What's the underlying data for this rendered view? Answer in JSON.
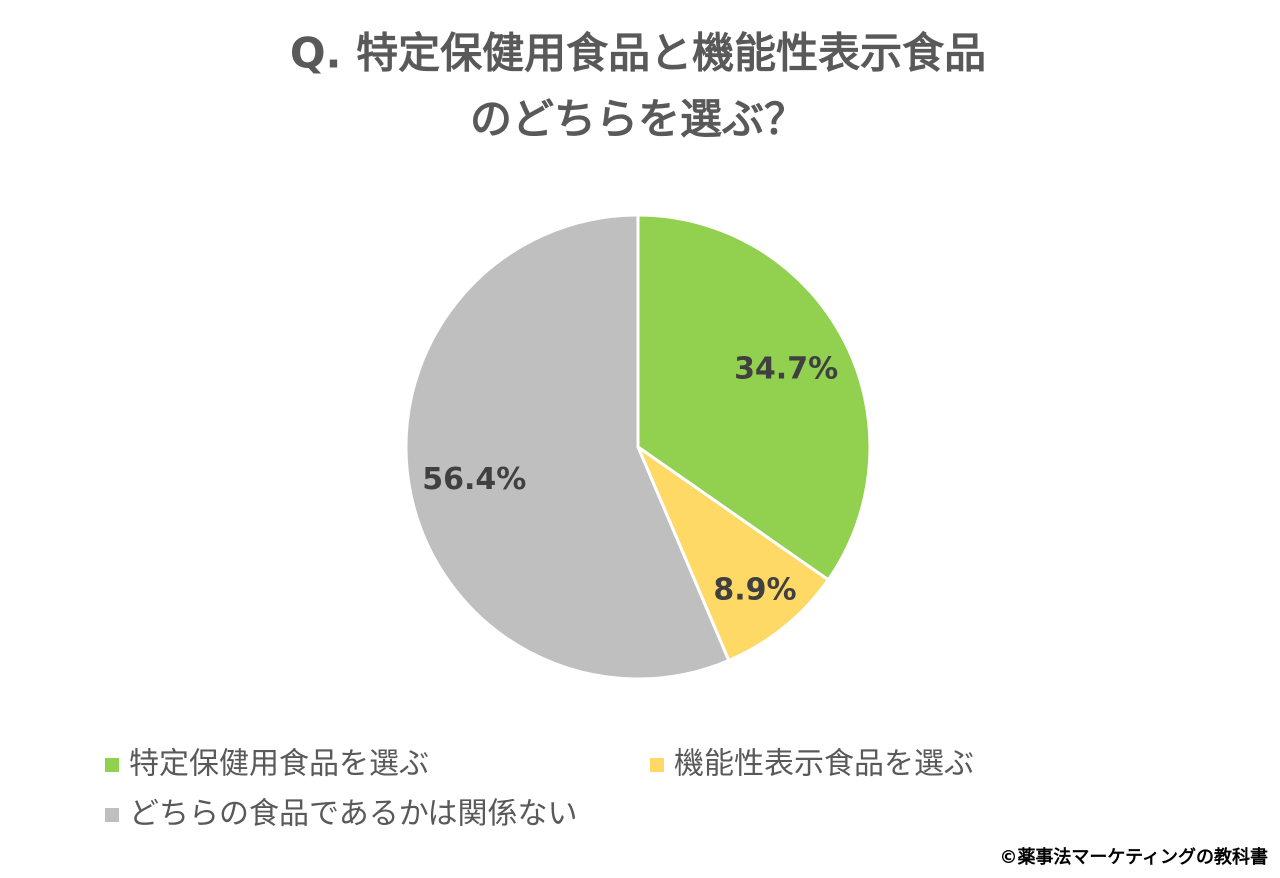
{
  "chart_data": {
    "type": "pie",
    "title": [
      "Q. 特定保健用食品と機能性表示食品",
      "のどちらを選ぶ？"
    ],
    "categories": [
      "特定保健用食品を選ぶ",
      "機能性表示食品を選ぶ",
      "どちらの食品であるかは関係ない"
    ],
    "values": [
      34.7,
      8.9,
      56.4
    ],
    "value_labels": [
      "34.7%",
      "8.9%",
      "56.4%"
    ],
    "colors": [
      "#92d050",
      "#ffd966",
      "#bfbfbf"
    ],
    "legend": "bottom",
    "credit": "©薬事法マーケティングの教科書"
  }
}
